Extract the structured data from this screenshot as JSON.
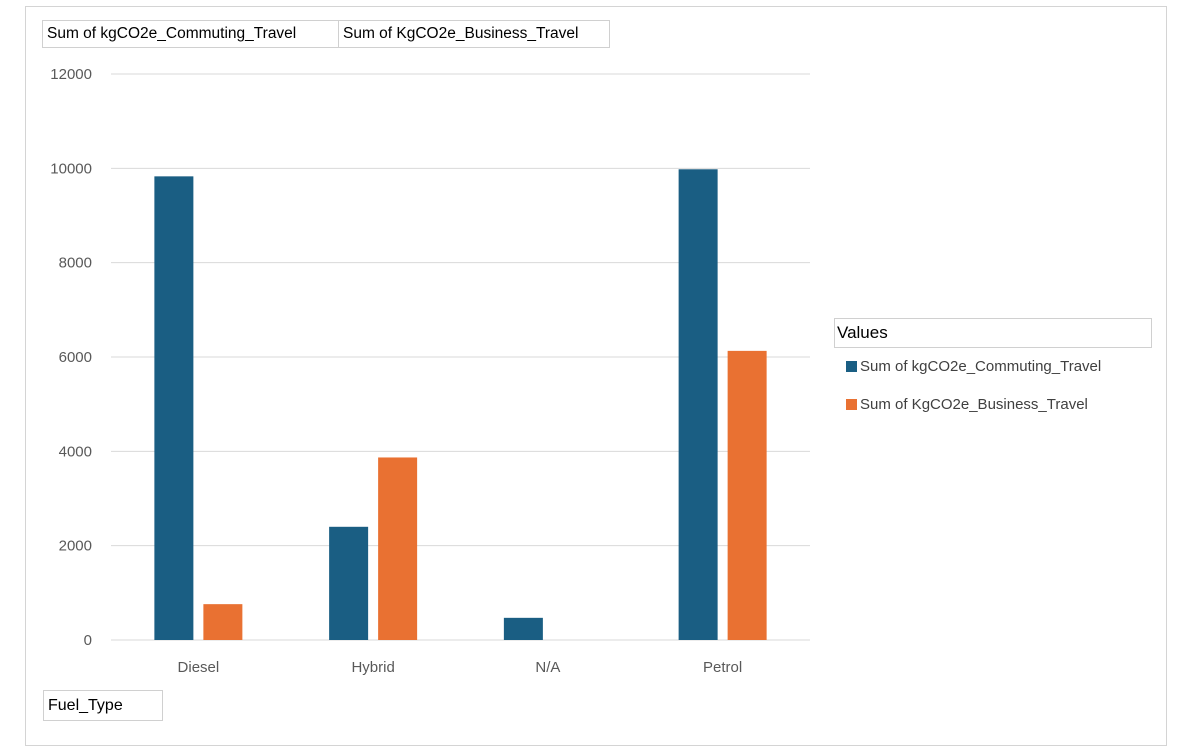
{
  "field_buttons": {
    "commuting": "Sum of kgCO2e_Commuting_Travel",
    "business": "Sum of KgCO2e_Business_Travel",
    "axis_field": "Fuel_Type"
  },
  "legend": {
    "title": "Values",
    "position": "right"
  },
  "colors": {
    "series_0": "#1a5e83",
    "series_1": "#e97132",
    "gridline": "#d9d9d9",
    "axis_label": "#595959"
  },
  "chart_data": {
    "type": "bar",
    "categories": [
      "Diesel",
      "Hybrid",
      "N/A",
      "Petrol"
    ],
    "series": [
      {
        "name": "Sum of kgCO2e_Commuting_Travel",
        "values": [
          9830,
          2400,
          470,
          9980
        ]
      },
      {
        "name": "Sum of KgCO2e_Business_Travel",
        "values": [
          760,
          3870,
          0,
          6130
        ]
      }
    ],
    "ylim": [
      0,
      12000
    ],
    "yticks": [
      "0",
      "2000",
      "4000",
      "6000",
      "8000",
      "10000",
      "12000"
    ],
    "grid": true
  }
}
